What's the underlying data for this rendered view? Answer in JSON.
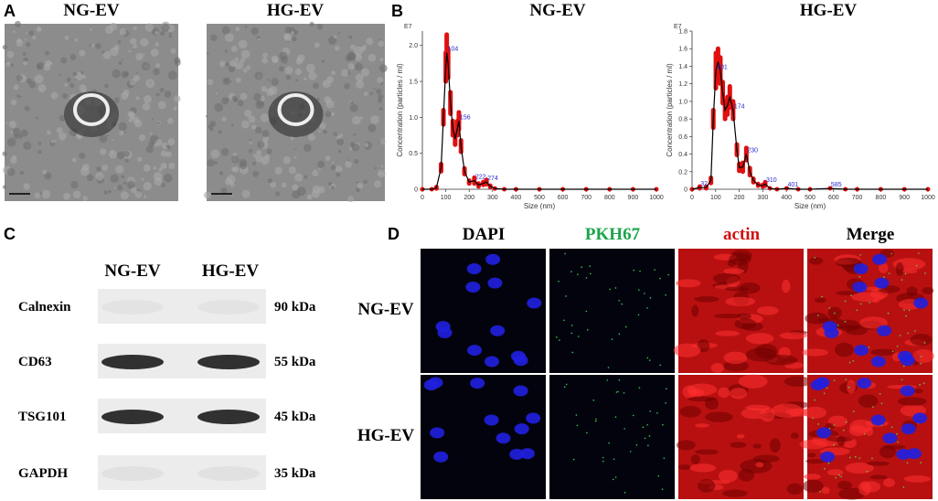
{
  "panel_a": {
    "letter": "A",
    "titles": [
      "NG-EV",
      "HG-EV"
    ]
  },
  "panel_b": {
    "letter": "B"
  },
  "chart_data": [
    {
      "type": "line",
      "title": "NG-EV",
      "xlabel": "Size (nm)",
      "ylabel": "Concentration (particles / ml)",
      "exponent": "E7",
      "color": "#000000",
      "error_color": "#e01010",
      "x": [
        0,
        40,
        60,
        80,
        90,
        100,
        104,
        110,
        120,
        130,
        140,
        150,
        156,
        165,
        180,
        200,
        222,
        240,
        260,
        274,
        290,
        310,
        350,
        400,
        500,
        600,
        700,
        800,
        900,
        1000
      ],
      "values": [
        0,
        0,
        0.02,
        0.3,
        1.0,
        1.7,
        1.9,
        1.75,
        1.2,
        0.85,
        0.7,
        0.85,
        0.95,
        0.6,
        0.25,
        0.1,
        0.12,
        0.06,
        0.08,
        0.1,
        0.04,
        0.01,
        0,
        0,
        0,
        0,
        0,
        0,
        0,
        0
      ],
      "error": [
        0,
        0,
        0.01,
        0.05,
        0.1,
        0.2,
        0.25,
        0.2,
        0.15,
        0.1,
        0.08,
        0.1,
        0.12,
        0.08,
        0.04,
        0.02,
        0.04,
        0.02,
        0.02,
        0.03,
        0.01,
        0,
        0,
        0,
        0,
        0,
        0,
        0,
        0,
        0
      ],
      "peaks": [
        104,
        156,
        222,
        274
      ],
      "xlim": [
        0,
        1000
      ],
      "ylim": [
        0,
        2.2
      ],
      "xticks": [
        0,
        100,
        200,
        300,
        400,
        500,
        600,
        700,
        800,
        900,
        1000
      ],
      "yticks": [
        0,
        0.5,
        {
          "value": 1,
          "label": "1.0"
        },
        1.5,
        {
          "value": 2,
          "label": "2.0"
        }
      ]
    },
    {
      "type": "line",
      "title": "HG-EV",
      "xlabel": "Size (nm)",
      "ylabel": "Concentration (particles / ml)",
      "exponent": "E7",
      "color": "#000000",
      "error_color": "#e01010",
      "x": [
        0,
        32,
        60,
        80,
        90,
        101,
        110,
        120,
        130,
        140,
        150,
        160,
        174,
        190,
        200,
        215,
        230,
        245,
        260,
        280,
        300,
        310,
        330,
        360,
        401,
        450,
        500,
        585,
        650,
        700,
        800,
        900,
        1000
      ],
      "values": [
        0,
        0.02,
        0.02,
        0.1,
        0.8,
        1.35,
        1.45,
        1.35,
        1.1,
        0.9,
        0.95,
        1.05,
        0.9,
        0.45,
        0.25,
        0.25,
        0.4,
        0.2,
        0.1,
        0.05,
        0.04,
        0.06,
        0.01,
        0,
        0.01,
        0,
        0,
        0.01,
        0,
        0,
        0,
        0,
        0
      ],
      "error": [
        0,
        0.01,
        0.01,
        0.03,
        0.1,
        0.2,
        0.15,
        0.15,
        0.12,
        0.1,
        0.1,
        0.12,
        0.1,
        0.06,
        0.04,
        0.05,
        0.07,
        0.04,
        0.02,
        0.01,
        0.01,
        0.02,
        0,
        0,
        0,
        0,
        0,
        0,
        0,
        0,
        0,
        0,
        0
      ],
      "peaks": [
        32,
        101,
        174,
        230,
        310,
        401,
        585
      ],
      "xlim": [
        0,
        1000
      ],
      "ylim": [
        0,
        1.8
      ],
      "xticks": [
        0,
        100,
        200,
        300,
        400,
        500,
        600,
        700,
        800,
        900,
        1000
      ],
      "yticks": [
        0,
        0.2,
        0.4,
        0.6,
        0.8,
        {
          "value": 1,
          "label": "1.0"
        },
        1.2,
        1.4,
        1.6,
        1.8
      ]
    }
  ],
  "panel_c": {
    "letter": "C",
    "columns": [
      "NG-EV",
      "HG-EV"
    ],
    "rows": [
      {
        "protein": "Calnexin",
        "size": "90 kDa"
      },
      {
        "protein": "CD63",
        "size": "55 kDa"
      },
      {
        "protein": "TSG101",
        "size": "45 kDa"
      },
      {
        "protein": "GAPDH",
        "size": "35 kDa"
      }
    ]
  },
  "panel_d": {
    "letter": "D",
    "columns": [
      "DAPI",
      "PKH67",
      "actin",
      "Merge"
    ],
    "rows": [
      "NG-EV",
      "HG-EV"
    ]
  }
}
